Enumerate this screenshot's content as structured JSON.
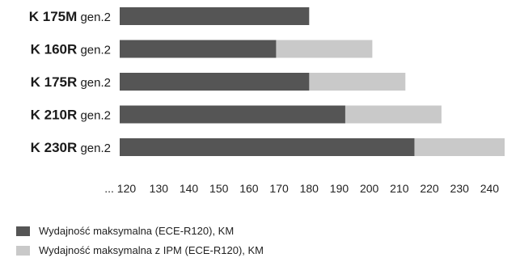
{
  "chart_data": {
    "type": "bar",
    "orientation": "horizontal",
    "stacked": false,
    "categories": [
      {
        "bold": "K 175M",
        "suffix": "gen.2"
      },
      {
        "bold": "K 160R",
        "suffix": "gen.2"
      },
      {
        "bold": "K 175R",
        "suffix": "gen.2"
      },
      {
        "bold": "K 210R",
        "suffix": "gen.2"
      },
      {
        "bold": "K 230R",
        "suffix": "gen.2"
      }
    ],
    "series": [
      {
        "name": "Wydajność maksymalna (ECE-R120), KM",
        "color": "#555555",
        "values": [
          180,
          169,
          180,
          192,
          215
        ]
      },
      {
        "name": "Wydajność maksymalna z IPM (ECE-R120), KM",
        "color": "#c9c9c9",
        "values": [
          180,
          201,
          212,
          224,
          245
        ]
      }
    ],
    "x_tick_labels": [
      "... 120",
      "130",
      "140",
      "150",
      "160",
      "170",
      "180",
      "190",
      "200",
      "210",
      "220",
      "230",
      "240"
    ],
    "x_ticks": [
      120,
      130,
      140,
      150,
      160,
      170,
      180,
      190,
      200,
      210,
      220,
      230,
      240
    ],
    "xlim": [
      117,
      245
    ],
    "grid": false,
    "legend_position": "bottom-left"
  }
}
